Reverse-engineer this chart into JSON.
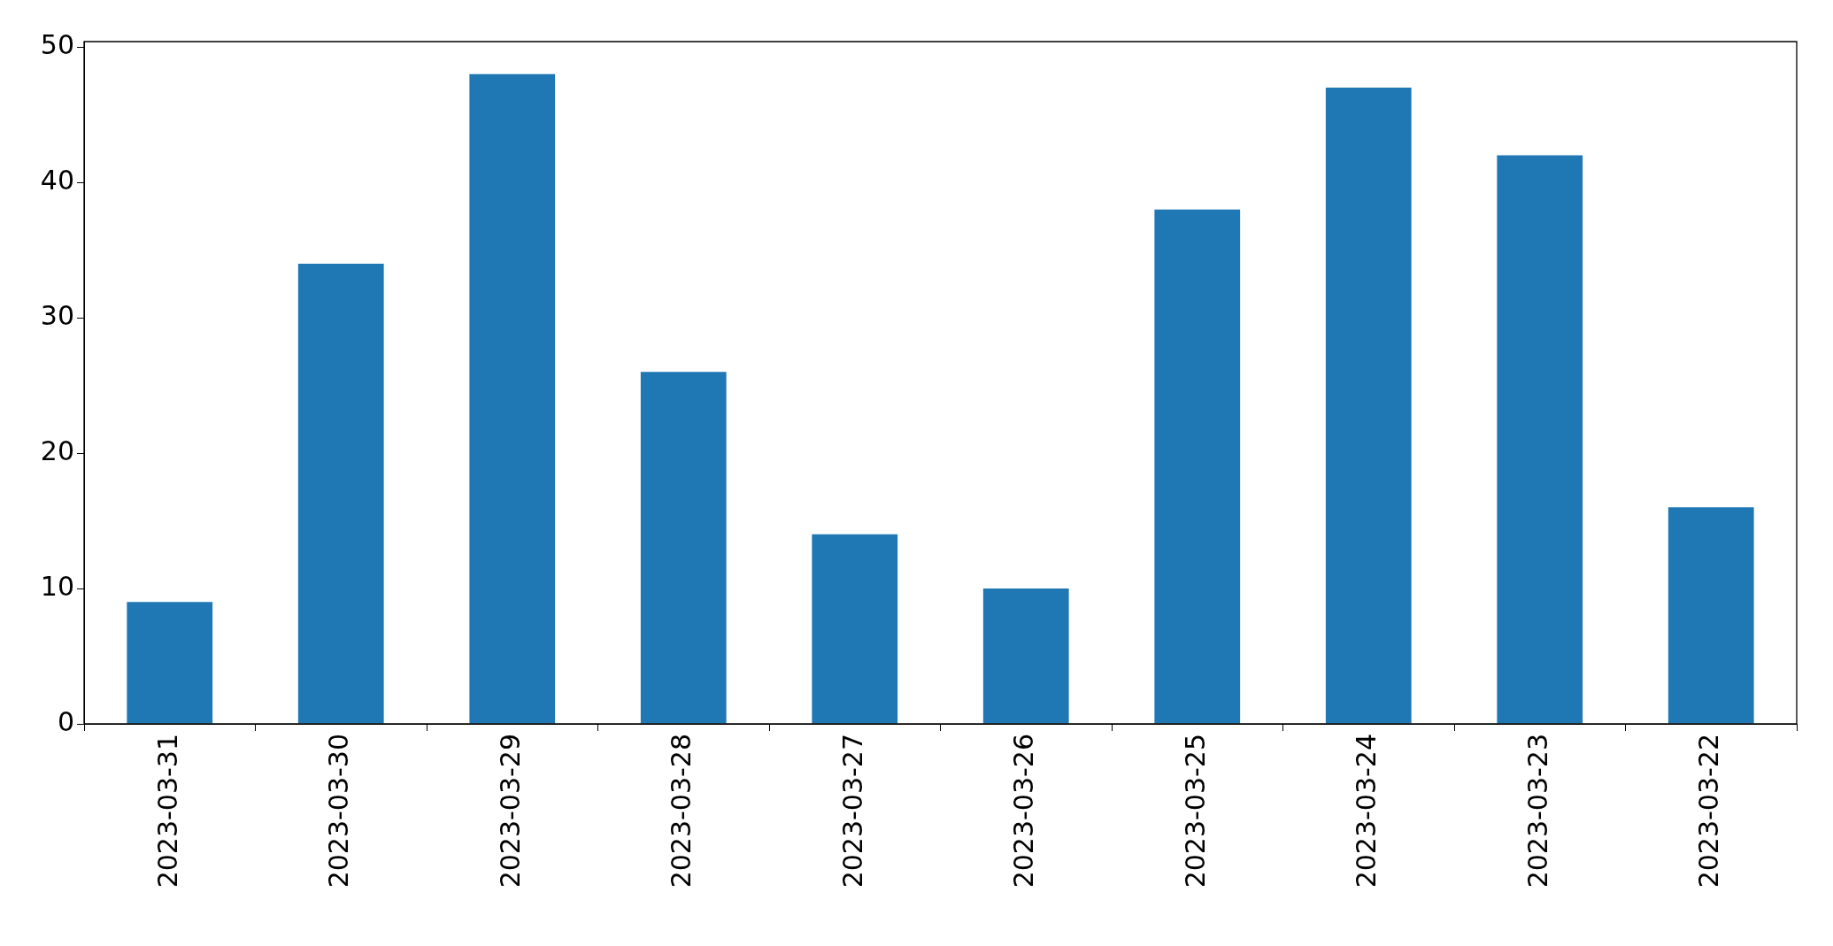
{
  "chart_data": {
    "type": "bar",
    "categories": [
      "2023-03-31",
      "2023-03-30",
      "2023-03-29",
      "2023-03-28",
      "2023-03-27",
      "2023-03-26",
      "2023-03-25",
      "2023-03-24",
      "2023-03-23",
      "2023-03-22"
    ],
    "values": [
      9,
      34,
      48,
      26,
      14,
      10,
      38,
      47,
      42,
      16
    ],
    "color": "#1f77b4",
    "ylim": [
      0,
      50.4
    ],
    "yticks": [
      0,
      10,
      20,
      30,
      40,
      50
    ],
    "grid": false,
    "legend": false
  }
}
